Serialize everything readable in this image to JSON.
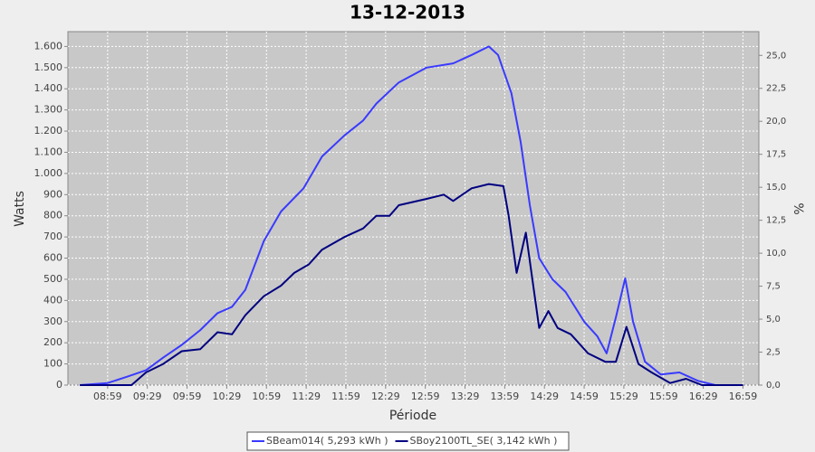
{
  "chart_data": {
    "type": "line",
    "title": "13-12-2013",
    "xlabel": "Période",
    "ylabel": "Watts",
    "y2label": "%",
    "xlim": [
      "08:29",
      "17:11"
    ],
    "xticks": [
      "08:59",
      "09:29",
      "09:59",
      "10:29",
      "10:59",
      "11:29",
      "11:59",
      "12:29",
      "12:59",
      "13:29",
      "13:59",
      "14:29",
      "14:59",
      "15:29",
      "15:59",
      "16:29",
      "16:59"
    ],
    "ylim": [
      0,
      1670
    ],
    "yticks": [
      0,
      100,
      200,
      300,
      400,
      500,
      600,
      700,
      800,
      900,
      {
        "value": 1000,
        "label": "1.000"
      },
      {
        "value": 1100,
        "label": "1.100"
      },
      {
        "value": 1200,
        "label": "1.200"
      },
      {
        "value": 1300,
        "label": "1.300"
      },
      {
        "value": 1400,
        "label": "1.400"
      },
      {
        "value": 1500,
        "label": "1.500"
      },
      {
        "value": 1600,
        "label": "1.600"
      }
    ],
    "y2lim": [
      0,
      26.8
    ],
    "y2ticks": [
      {
        "value": 0,
        "label": "0,0"
      },
      {
        "value": 2.5,
        "label": "2,5"
      },
      {
        "value": 5,
        "label": "5,0"
      },
      {
        "value": 7.5,
        "label": "7,5"
      },
      {
        "value": 10,
        "label": "10,0"
      },
      {
        "value": 12.5,
        "label": "12,5"
      },
      {
        "value": 15,
        "label": "15,0"
      },
      {
        "value": 17.5,
        "label": "17,5"
      },
      {
        "value": 20,
        "label": "20,0"
      },
      {
        "value": 22.5,
        "label": "22,5"
      },
      {
        "value": 25,
        "label": "25,0"
      }
    ],
    "grid": true,
    "legend": "bottom",
    "series": [
      {
        "name": "SBeam014( 5,293 kWh )",
        "color": "#3a3aff",
        "x": [
          "08:38",
          "08:59",
          "09:14",
          "09:28",
          "09:41",
          "09:55",
          "10:09",
          "10:22",
          "10:33",
          "10:43",
          "10:57",
          "11:10",
          "11:27",
          "11:41",
          "11:58",
          "12:12",
          "12:22",
          "12:39",
          "13:00",
          "13:20",
          "13:34",
          "13:47",
          "13:54",
          "14:04",
          "14:11",
          "14:18",
          "14:25",
          "14:35",
          "14:45",
          "14:59",
          "15:09",
          "15:16",
          "15:23",
          "15:30",
          "15:36",
          "15:45",
          "15:57",
          "16:11",
          "16:25",
          "16:38",
          "16:59"
        ],
        "values": [
          0,
          10,
          40,
          70,
          130,
          190,
          260,
          340,
          370,
          450,
          680,
          820,
          930,
          1080,
          1180,
          1250,
          1330,
          1430,
          1500,
          1520,
          1560,
          1600,
          1560,
          1380,
          1150,
          850,
          600,
          500,
          440,
          300,
          230,
          150,
          320,
          505,
          300,
          110,
          50,
          60,
          20,
          0,
          0
        ]
      },
      {
        "name": "SBoy2100TL_SE( 3,142 kWh )",
        "color": "#000080",
        "x": [
          "08:38",
          "09:17",
          "09:28",
          "09:41",
          "09:55",
          "10:09",
          "10:22",
          "10:33",
          "10:43",
          "10:57",
          "11:10",
          "11:20",
          "11:31",
          "11:41",
          "11:58",
          "12:12",
          "12:22",
          "12:32",
          "12:39",
          "13:00",
          "13:13",
          "13:20",
          "13:34",
          "13:47",
          "13:58",
          "14:02",
          "14:08",
          "14:15",
          "14:25",
          "14:32",
          "14:39",
          "14:49",
          "15:02",
          "15:15",
          "15:23",
          "15:31",
          "15:40",
          "15:50",
          "16:04",
          "16:16",
          "16:28",
          "16:59"
        ],
        "values": [
          0,
          0,
          60,
          100,
          160,
          170,
          250,
          240,
          330,
          420,
          470,
          530,
          570,
          640,
          700,
          740,
          800,
          800,
          850,
          880,
          900,
          870,
          930,
          950,
          940,
          800,
          530,
          720,
          270,
          350,
          270,
          240,
          150,
          110,
          110,
          275,
          100,
          60,
          10,
          30,
          0,
          0
        ]
      }
    ]
  }
}
